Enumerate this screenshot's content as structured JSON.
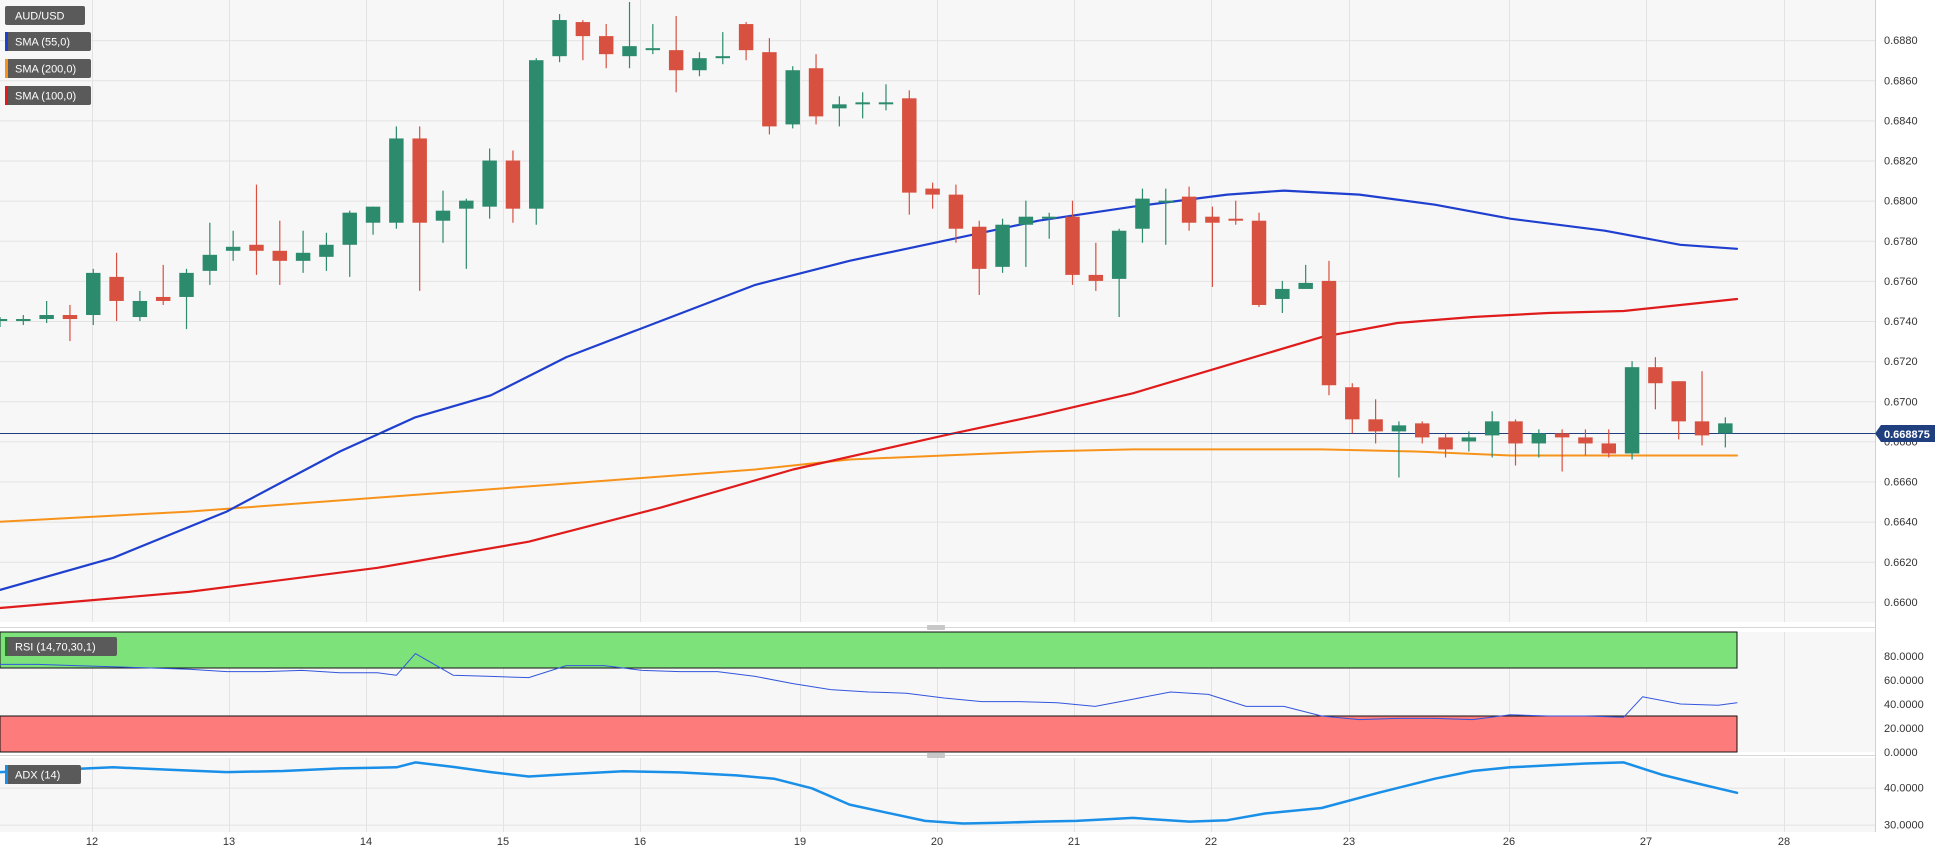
{
  "chart_data": {
    "type": "candlestick",
    "symbol": "AUD/USD",
    "last_price": "0.668875",
    "x_tick_labels": [
      "12",
      "13",
      "14",
      "15",
      "16",
      "19",
      "20",
      "21",
      "22",
      "23",
      "26",
      "27",
      "28"
    ],
    "price_axis": {
      "ylim": [
        0.659,
        0.69
      ],
      "ticks": [
        "0.6600",
        "0.6620",
        "0.6640",
        "0.6660",
        "0.6680",
        "0.6700",
        "0.6720",
        "0.6740",
        "0.6760",
        "0.6780",
        "0.6800",
        "0.6820",
        "0.6840",
        "0.6860",
        "0.6880"
      ]
    },
    "legend": [
      {
        "label": "SMA (55,0)",
        "color": "#1f3fcf"
      },
      {
        "label": "SMA (200,0)",
        "color": "#f7931a"
      },
      {
        "label": "SMA (100,0)",
        "color": "#e01b1b"
      }
    ],
    "candles": [
      [
        0.674,
        0.6741,
        0.6737,
        0.6742
      ],
      [
        0.674,
        0.6741,
        0.6738,
        0.6743
      ],
      [
        0.6741,
        0.6743,
        0.6739,
        0.675
      ],
      [
        0.6743,
        0.6741,
        0.673,
        0.6748
      ],
      [
        0.6743,
        0.6764,
        0.6738,
        0.6766
      ],
      [
        0.6762,
        0.675,
        0.674,
        0.6774
      ],
      [
        0.6742,
        0.675,
        0.674,
        0.6755
      ],
      [
        0.6752,
        0.675,
        0.6748,
        0.6768
      ],
      [
        0.6752,
        0.6764,
        0.6736,
        0.6766
      ],
      [
        0.6765,
        0.6773,
        0.6758,
        0.6789
      ],
      [
        0.6775,
        0.6777,
        0.677,
        0.6785
      ],
      [
        0.6778,
        0.6775,
        0.6763,
        0.6808
      ],
      [
        0.6775,
        0.677,
        0.6758,
        0.679
      ],
      [
        0.677,
        0.6774,
        0.6764,
        0.6785
      ],
      [
        0.6772,
        0.6778,
        0.6765,
        0.6784
      ],
      [
        0.6778,
        0.6794,
        0.6762,
        0.6795
      ],
      [
        0.6789,
        0.6797,
        0.6783,
        0.6797
      ],
      [
        0.6789,
        0.6831,
        0.6786,
        0.6837
      ],
      [
        0.6831,
        0.6789,
        0.6755,
        0.6837
      ],
      [
        0.679,
        0.6795,
        0.6779,
        0.6805
      ],
      [
        0.6796,
        0.68,
        0.6766,
        0.6801
      ],
      [
        0.6797,
        0.682,
        0.6791,
        0.6826
      ],
      [
        0.682,
        0.6796,
        0.6789,
        0.6825
      ],
      [
        0.6796,
        0.687,
        0.6788,
        0.6871
      ],
      [
        0.6872,
        0.689,
        0.6869,
        0.6893
      ],
      [
        0.6889,
        0.6882,
        0.687,
        0.689
      ],
      [
        0.6882,
        0.6873,
        0.6866,
        0.6888
      ],
      [
        0.6872,
        0.6877,
        0.6866,
        0.6899
      ],
      [
        0.6876,
        0.6876,
        0.6873,
        0.6888
      ],
      [
        0.6875,
        0.6865,
        0.6854,
        0.6892
      ],
      [
        0.6865,
        0.6871,
        0.6862,
        0.6874
      ],
      [
        0.6871,
        0.6872,
        0.6868,
        0.6884
      ],
      [
        0.6888,
        0.6875,
        0.687,
        0.6889
      ],
      [
        0.6874,
        0.6837,
        0.6833,
        0.6881
      ],
      [
        0.6838,
        0.6865,
        0.6836,
        0.6867
      ],
      [
        0.6866,
        0.6842,
        0.6838,
        0.6873
      ],
      [
        0.6846,
        0.6848,
        0.6837,
        0.6852
      ],
      [
        0.6848,
        0.6849,
        0.6841,
        0.6854
      ],
      [
        0.6849,
        0.6849,
        0.6845,
        0.6858
      ],
      [
        0.6851,
        0.6804,
        0.6793,
        0.6855
      ],
      [
        0.6806,
        0.6803,
        0.6796,
        0.6809
      ],
      [
        0.6803,
        0.6786,
        0.6779,
        0.6808
      ],
      [
        0.6787,
        0.6766,
        0.6753,
        0.679
      ],
      [
        0.6767,
        0.6788,
        0.6764,
        0.6791
      ],
      [
        0.6788,
        0.6792,
        0.6767,
        0.68
      ],
      [
        0.6792,
        0.6792,
        0.6781,
        0.6794
      ],
      [
        0.6792,
        0.6763,
        0.6758,
        0.68
      ],
      [
        0.6763,
        0.676,
        0.6755,
        0.6779
      ],
      [
        0.6761,
        0.6785,
        0.6742,
        0.6786
      ],
      [
        0.6786,
        0.6801,
        0.6779,
        0.6806
      ],
      [
        0.68,
        0.68,
        0.6778,
        0.6806
      ],
      [
        0.6802,
        0.6789,
        0.6785,
        0.6807
      ],
      [
        0.6792,
        0.6789,
        0.6757,
        0.6797
      ],
      [
        0.6791,
        0.679,
        0.6788,
        0.68
      ],
      [
        0.679,
        0.6748,
        0.6747,
        0.6794
      ],
      [
        0.6751,
        0.6756,
        0.6744,
        0.676
      ],
      [
        0.6756,
        0.6759,
        0.6756,
        0.6768
      ],
      [
        0.676,
        0.6708,
        0.6703,
        0.677
      ],
      [
        0.6707,
        0.6691,
        0.6684,
        0.6709
      ],
      [
        0.6691,
        0.6685,
        0.6679,
        0.6701
      ],
      [
        0.6685,
        0.6688,
        0.6662,
        0.669
      ],
      [
        0.6689,
        0.6682,
        0.6679,
        0.669
      ],
      [
        0.6682,
        0.6676,
        0.6672,
        0.6684
      ],
      [
        0.668,
        0.6682,
        0.6675,
        0.6685
      ],
      [
        0.6683,
        0.669,
        0.6672,
        0.6695
      ],
      [
        0.669,
        0.6679,
        0.6668,
        0.6691
      ],
      [
        0.6679,
        0.6684,
        0.6672,
        0.6686
      ],
      [
        0.6684,
        0.6682,
        0.6665,
        0.6686
      ],
      [
        0.6682,
        0.6679,
        0.6673,
        0.6686
      ],
      [
        0.6679,
        0.6674,
        0.6672,
        0.6686
      ],
      [
        0.6674,
        0.6717,
        0.6671,
        0.672
      ],
      [
        0.6717,
        0.6709,
        0.6696,
        0.6722
      ],
      [
        0.671,
        0.669,
        0.6681,
        0.671
      ],
      [
        0.669,
        0.6683,
        0.6678,
        0.6715
      ],
      [
        0.6684,
        0.6689,
        0.6677,
        0.6692
      ]
    ],
    "sma55": [
      [
        0,
        0.6606
      ],
      [
        0.06,
        0.6622
      ],
      [
        0.12,
        0.6645
      ],
      [
        0.18,
        0.6675
      ],
      [
        0.22,
        0.6692
      ],
      [
        0.26,
        0.6703
      ],
      [
        0.3,
        0.6722
      ],
      [
        0.35,
        0.674
      ],
      [
        0.4,
        0.6758
      ],
      [
        0.45,
        0.677
      ],
      [
        0.5,
        0.678
      ],
      [
        0.55,
        0.679
      ],
      [
        0.6,
        0.6797
      ],
      [
        0.65,
        0.6803
      ],
      [
        0.68,
        0.6805
      ],
      [
        0.72,
        0.6803
      ],
      [
        0.76,
        0.6798
      ],
      [
        0.8,
        0.6791
      ],
      [
        0.85,
        0.6785
      ],
      [
        0.89,
        0.6778
      ],
      [
        0.92,
        0.6776
      ]
    ],
    "sma100": [
      [
        0,
        0.6597
      ],
      [
        0.1,
        0.6605
      ],
      [
        0.2,
        0.6617
      ],
      [
        0.28,
        0.663
      ],
      [
        0.35,
        0.6647
      ],
      [
        0.42,
        0.6666
      ],
      [
        0.5,
        0.6683
      ],
      [
        0.55,
        0.6693
      ],
      [
        0.6,
        0.6704
      ],
      [
        0.65,
        0.6718
      ],
      [
        0.7,
        0.6732
      ],
      [
        0.74,
        0.6739
      ],
      [
        0.78,
        0.6742
      ],
      [
        0.82,
        0.6744
      ],
      [
        0.86,
        0.6745
      ],
      [
        0.89,
        0.6748
      ],
      [
        0.92,
        0.6751
      ]
    ],
    "sma200": [
      [
        0,
        0.664
      ],
      [
        0.1,
        0.6645
      ],
      [
        0.2,
        0.6652
      ],
      [
        0.3,
        0.6659
      ],
      [
        0.4,
        0.6666
      ],
      [
        0.45,
        0.6671
      ],
      [
        0.5,
        0.6673
      ],
      [
        0.55,
        0.6675
      ],
      [
        0.6,
        0.6676
      ],
      [
        0.65,
        0.6676
      ],
      [
        0.7,
        0.6676
      ],
      [
        0.75,
        0.6675
      ],
      [
        0.8,
        0.6673
      ],
      [
        0.85,
        0.6673
      ],
      [
        0.88,
        0.6673
      ],
      [
        0.92,
        0.6673
      ]
    ],
    "rsi": {
      "label": "RSI (14,70,30,1)",
      "ticks": [
        "0.0000",
        "20.0000",
        "40.0000",
        "60.0000",
        "80.0000"
      ],
      "ylim": [
        0,
        100
      ],
      "overbought": 70,
      "oversold": 30,
      "values": [
        [
          0,
          73
        ],
        [
          0.02,
          73
        ],
        [
          0.04,
          72
        ],
        [
          0.06,
          71
        ],
        [
          0.08,
          70
        ],
        [
          0.1,
          69
        ],
        [
          0.12,
          67
        ],
        [
          0.14,
          67
        ],
        [
          0.16,
          68
        ],
        [
          0.18,
          66
        ],
        [
          0.2,
          66
        ],
        [
          0.21,
          64
        ],
        [
          0.22,
          82
        ],
        [
          0.24,
          64
        ],
        [
          0.26,
          63
        ],
        [
          0.28,
          62
        ],
        [
          0.3,
          72
        ],
        [
          0.32,
          72
        ],
        [
          0.34,
          68
        ],
        [
          0.36,
          67
        ],
        [
          0.38,
          67
        ],
        [
          0.4,
          63
        ],
        [
          0.42,
          57
        ],
        [
          0.44,
          52
        ],
        [
          0.46,
          50
        ],
        [
          0.48,
          49
        ],
        [
          0.5,
          45
        ],
        [
          0.52,
          42
        ],
        [
          0.54,
          42
        ],
        [
          0.56,
          41
        ],
        [
          0.58,
          38
        ],
        [
          0.6,
          44
        ],
        [
          0.62,
          50
        ],
        [
          0.64,
          48
        ],
        [
          0.66,
          38
        ],
        [
          0.68,
          38
        ],
        [
          0.7,
          30
        ],
        [
          0.72,
          27
        ],
        [
          0.74,
          28
        ],
        [
          0.76,
          28
        ],
        [
          0.78,
          27
        ],
        [
          0.8,
          31
        ],
        [
          0.82,
          30
        ],
        [
          0.84,
          30
        ],
        [
          0.86,
          29
        ],
        [
          0.87,
          46
        ],
        [
          0.89,
          40
        ],
        [
          0.91,
          39
        ],
        [
          0.92,
          41
        ]
      ]
    },
    "adx": {
      "label": "ADX (14)",
      "ticks": [
        "30.0000",
        "40.0000"
      ],
      "ylim": [
        28,
        48
      ],
      "values": [
        [
          0,
          44.2
        ],
        [
          0.03,
          44.8
        ],
        [
          0.06,
          45.5
        ],
        [
          0.09,
          44.8
        ],
        [
          0.12,
          44.2
        ],
        [
          0.15,
          44.5
        ],
        [
          0.18,
          45.2
        ],
        [
          0.21,
          45.5
        ],
        [
          0.22,
          46.8
        ],
        [
          0.24,
          45.6
        ],
        [
          0.26,
          44.2
        ],
        [
          0.28,
          43.0
        ],
        [
          0.3,
          43.6
        ],
        [
          0.33,
          44.4
        ],
        [
          0.36,
          44.1
        ],
        [
          0.39,
          43.3
        ],
        [
          0.41,
          42.4
        ],
        [
          0.43,
          39.8
        ],
        [
          0.45,
          35.4
        ],
        [
          0.47,
          33.2
        ],
        [
          0.49,
          31.0
        ],
        [
          0.51,
          30.3
        ],
        [
          0.53,
          30.5
        ],
        [
          0.55,
          30.8
        ],
        [
          0.57,
          31.0
        ],
        [
          0.6,
          31.8
        ],
        [
          0.63,
          30.8
        ],
        [
          0.65,
          31.2
        ],
        [
          0.67,
          33.0
        ],
        [
          0.7,
          34.5
        ],
        [
          0.73,
          38.6
        ],
        [
          0.76,
          42.4
        ],
        [
          0.78,
          44.5
        ],
        [
          0.8,
          45.5
        ],
        [
          0.82,
          46.0
        ],
        [
          0.84,
          46.5
        ],
        [
          0.86,
          46.8
        ],
        [
          0.88,
          43.5
        ],
        [
          0.9,
          41.0
        ],
        [
          0.92,
          38.6
        ]
      ]
    }
  }
}
